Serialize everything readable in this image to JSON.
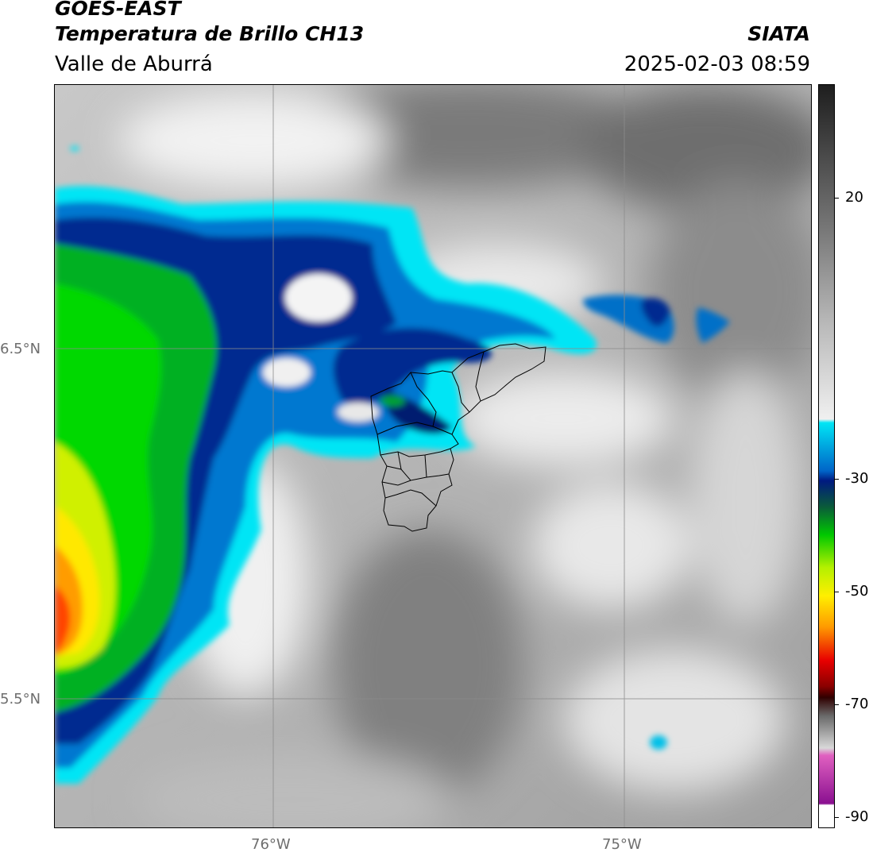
{
  "header": {
    "satellite": "GOES-EAST",
    "product": "Temperatura de Brillo CH13",
    "region": "Valle de Aburrá",
    "organization": "SIATA",
    "timestamp": "2025-02-03 08:59"
  },
  "map": {
    "lat_labels": [
      "6.5°N",
      "5.5°N"
    ],
    "lon_labels": [
      "76°W",
      "75°W"
    ]
  },
  "colorbar": {
    "ticks": [
      "20",
      "-30",
      "-50",
      "-70",
      "-90"
    ],
    "colors": {
      "gray_dark": "#1e1e1e",
      "gray_light": "#f0f0f0",
      "cyan": "#00e5f5",
      "blue": "#0064c8",
      "navy": "#001a80",
      "green": "#00c800",
      "lime": "#b4f000",
      "yellow": "#ffef00",
      "orange": "#ff9a00",
      "red": "#e80000",
      "dark_red": "#300000",
      "magenta": "#e060c0",
      "purple": "#8a1090"
    }
  }
}
